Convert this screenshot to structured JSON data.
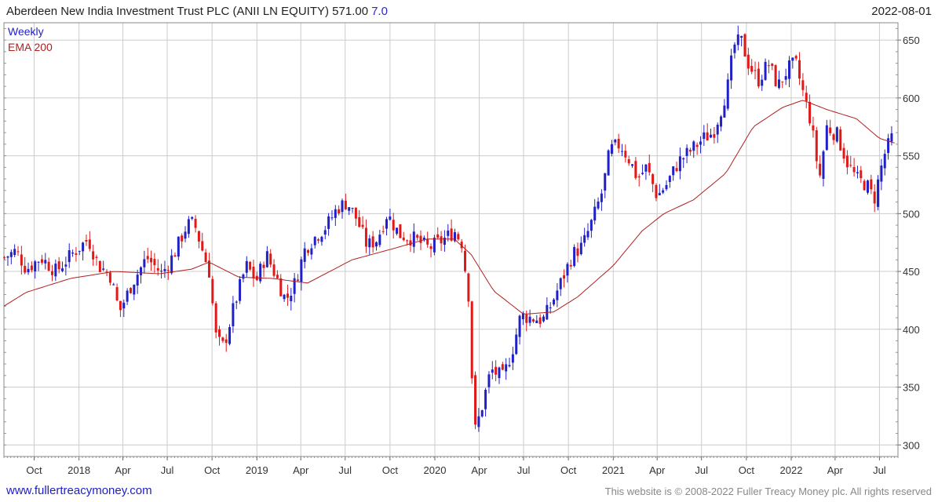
{
  "header": {
    "title": "Aberdeen New India Investment Trust PLC (ANII LN EQUITY)",
    "price": "571.00",
    "change": "7.0",
    "date": "2022-08-01"
  },
  "footer": {
    "url": "www.fullertreacymoney.com",
    "copyright": "This website is © 2008-2022 Fuller Treacy Money plc. All rights reserved"
  },
  "colors": {
    "up": "#2020c8",
    "down": "#e01818",
    "ema": "#b02020",
    "grid": "#cccccc"
  },
  "chart_data": {
    "type": "candlestick",
    "frequency": "Weekly",
    "legend": [
      "Weekly",
      "EMA 200"
    ],
    "ylim": [
      290,
      665
    ],
    "y_ticks": [
      300,
      350,
      400,
      450,
      500,
      550,
      600,
      650
    ],
    "x_range": [
      "2017-07-31",
      "2022-08-08"
    ],
    "x_ticks": [
      {
        "date": "2017-10-01",
        "label": "Oct"
      },
      {
        "date": "2018-01-01",
        "label": "2018"
      },
      {
        "date": "2018-04-01",
        "label": "Apr"
      },
      {
        "date": "2018-07-01",
        "label": "Jul"
      },
      {
        "date": "2018-10-01",
        "label": "Oct"
      },
      {
        "date": "2019-01-01",
        "label": "2019"
      },
      {
        "date": "2019-04-01",
        "label": "Apr"
      },
      {
        "date": "2019-07-01",
        "label": "Jul"
      },
      {
        "date": "2019-10-01",
        "label": "Oct"
      },
      {
        "date": "2020-01-01",
        "label": "2020"
      },
      {
        "date": "2020-04-01",
        "label": "Apr"
      },
      {
        "date": "2020-07-01",
        "label": "Jul"
      },
      {
        "date": "2020-10-01",
        "label": "Oct"
      },
      {
        "date": "2021-01-01",
        "label": "2021"
      },
      {
        "date": "2021-04-01",
        "label": "Apr"
      },
      {
        "date": "2021-07-01",
        "label": "Jul"
      },
      {
        "date": "2021-10-01",
        "label": "Oct"
      },
      {
        "date": "2022-01-01",
        "label": "2022"
      },
      {
        "date": "2022-04-01",
        "label": "Apr"
      },
      {
        "date": "2022-07-01",
        "label": "Jul"
      }
    ],
    "price_anchors": [
      [
        "2017-08-01",
        462
      ],
      [
        "2017-08-25",
        468
      ],
      [
        "2017-09-15",
        452
      ],
      [
        "2017-10-15",
        462
      ],
      [
        "2017-11-15",
        450
      ],
      [
        "2017-12-20",
        466
      ],
      [
        "2018-01-20",
        478
      ],
      [
        "2018-02-10",
        455
      ],
      [
        "2018-03-05",
        448
      ],
      [
        "2018-03-25",
        415
      ],
      [
        "2018-04-20",
        440
      ],
      [
        "2018-05-20",
        462
      ],
      [
        "2018-06-20",
        448
      ],
      [
        "2018-07-15",
        465
      ],
      [
        "2018-08-10",
        490
      ],
      [
        "2018-08-25",
        492
      ],
      [
        "2018-09-10",
        470
      ],
      [
        "2018-09-25",
        450
      ],
      [
        "2018-10-10",
        390
      ],
      [
        "2018-10-25",
        385
      ],
      [
        "2018-11-15",
        420
      ],
      [
        "2018-12-10",
        455
      ],
      [
        "2018-12-31",
        442
      ],
      [
        "2019-01-20",
        465
      ],
      [
        "2019-02-10",
        445
      ],
      [
        "2019-03-01",
        425
      ],
      [
        "2019-03-20",
        440
      ],
      [
        "2019-04-10",
        470
      ],
      [
        "2019-05-01",
        480
      ],
      [
        "2019-05-25",
        490
      ],
      [
        "2019-06-15",
        505
      ],
      [
        "2019-07-05",
        510
      ],
      [
        "2019-07-25",
        495
      ],
      [
        "2019-08-15",
        472
      ],
      [
        "2019-09-05",
        478
      ],
      [
        "2019-09-25",
        500
      ],
      [
        "2019-10-20",
        482
      ],
      [
        "2019-11-20",
        478
      ],
      [
        "2019-12-20",
        470
      ],
      [
        "2020-01-20",
        478
      ],
      [
        "2020-02-10",
        485
      ],
      [
        "2020-02-25",
        475
      ],
      [
        "2020-03-10",
        430
      ],
      [
        "2020-03-22",
        310
      ],
      [
        "2020-04-05",
        330
      ],
      [
        "2020-04-25",
        365
      ],
      [
        "2020-05-20",
        358
      ],
      [
        "2020-06-10",
        385
      ],
      [
        "2020-06-25",
        412
      ],
      [
        "2020-07-15",
        410
      ],
      [
        "2020-08-10",
        408
      ],
      [
        "2020-08-25",
        420
      ],
      [
        "2020-09-15",
        440
      ],
      [
        "2020-10-10",
        465
      ],
      [
        "2020-10-30",
        472
      ],
      [
        "2020-11-20",
        495
      ],
      [
        "2020-12-10",
        520
      ],
      [
        "2020-12-25",
        555
      ],
      [
        "2021-01-15",
        560
      ],
      [
        "2021-02-05",
        545
      ],
      [
        "2021-02-20",
        530
      ],
      [
        "2021-03-10",
        540
      ],
      [
        "2021-04-01",
        515
      ],
      [
        "2021-04-20",
        525
      ],
      [
        "2021-05-15",
        545
      ],
      [
        "2021-06-10",
        555
      ],
      [
        "2021-07-05",
        565
      ],
      [
        "2021-07-25",
        570
      ],
      [
        "2021-08-10",
        590
      ],
      [
        "2021-08-25",
        612
      ],
      [
        "2021-09-05",
        645
      ],
      [
        "2021-09-20",
        650
      ],
      [
        "2021-10-05",
        630
      ],
      [
        "2021-10-25",
        615
      ],
      [
        "2021-11-15",
        630
      ],
      [
        "2021-12-05",
        610
      ],
      [
        "2021-12-25",
        625
      ],
      [
        "2022-01-10",
        630
      ],
      [
        "2022-01-25",
        605
      ],
      [
        "2022-02-10",
        580
      ],
      [
        "2022-02-28",
        530
      ],
      [
        "2022-03-15",
        575
      ],
      [
        "2022-04-05",
        568
      ],
      [
        "2022-04-25",
        545
      ],
      [
        "2022-05-15",
        530
      ],
      [
        "2022-06-05",
        525
      ],
      [
        "2022-06-20",
        512
      ],
      [
        "2022-07-10",
        550
      ],
      [
        "2022-08-01",
        571
      ]
    ],
    "ema200_anchors": [
      [
        "2017-07-31",
        420
      ],
      [
        "2017-09-15",
        432
      ],
      [
        "2017-12-15",
        444
      ],
      [
        "2018-03-15",
        450
      ],
      [
        "2018-06-15",
        448
      ],
      [
        "2018-08-20",
        452
      ],
      [
        "2018-09-25",
        458
      ],
      [
        "2018-11-25",
        445
      ],
      [
        "2019-01-31",
        444
      ],
      [
        "2019-04-15",
        440
      ],
      [
        "2019-07-15",
        460
      ],
      [
        "2019-10-10",
        470
      ],
      [
        "2019-12-15",
        478
      ],
      [
        "2020-02-10",
        478
      ],
      [
        "2020-03-15",
        465
      ],
      [
        "2020-05-01",
        433
      ],
      [
        "2020-07-01",
        413
      ],
      [
        "2020-09-01",
        415
      ],
      [
        "2020-10-20",
        428
      ],
      [
        "2021-01-01",
        455
      ],
      [
        "2021-03-01",
        485
      ],
      [
        "2021-04-15",
        500
      ],
      [
        "2021-06-15",
        512
      ],
      [
        "2021-08-20",
        535
      ],
      [
        "2021-10-15",
        575
      ],
      [
        "2021-12-15",
        592
      ],
      [
        "2022-01-25",
        598
      ],
      [
        "2022-03-15",
        590
      ],
      [
        "2022-05-15",
        582
      ],
      [
        "2022-07-01",
        565
      ],
      [
        "2022-08-01",
        561
      ]
    ]
  }
}
